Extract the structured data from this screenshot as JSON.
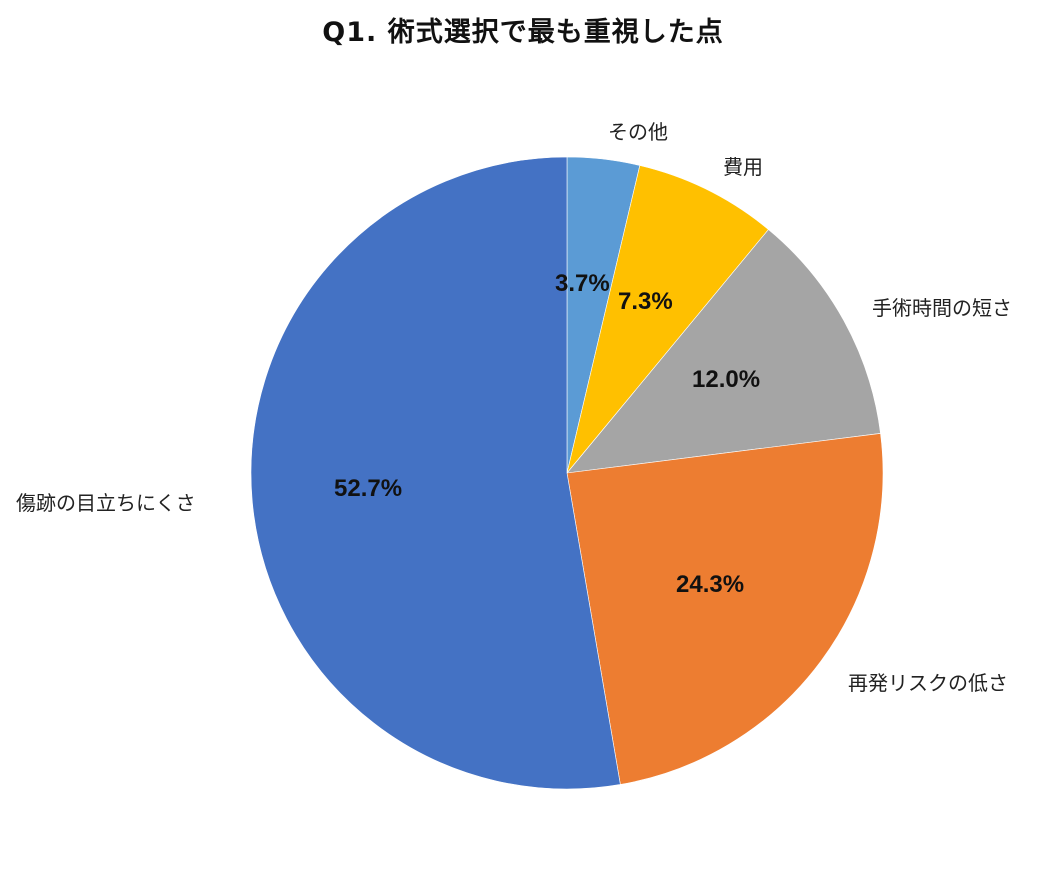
{
  "chart_data": {
    "type": "pie",
    "title": "Q1. 術式選択で最も重視した点",
    "start_angle": "12 o'clock",
    "direction": "clockwise",
    "slices": [
      {
        "label": "その他",
        "value": 3.7,
        "display": "3.7%",
        "color": "#5B9BD5"
      },
      {
        "label": "費用",
        "value": 7.3,
        "display": "7.3%",
        "color": "#FFC000"
      },
      {
        "label": "手術時間の短さ",
        "value": 12.0,
        "display": "12.0%",
        "color": "#A5A5A5"
      },
      {
        "label": "再発リスクの低さ",
        "value": 24.3,
        "display": "24.3%",
        "color": "#ED7D31"
      },
      {
        "label": "傷跡の目立ちにくさ",
        "value": 52.7,
        "display": "52.7%",
        "color": "#4472C4"
      }
    ],
    "legend": "none (category labels outside slices)"
  }
}
